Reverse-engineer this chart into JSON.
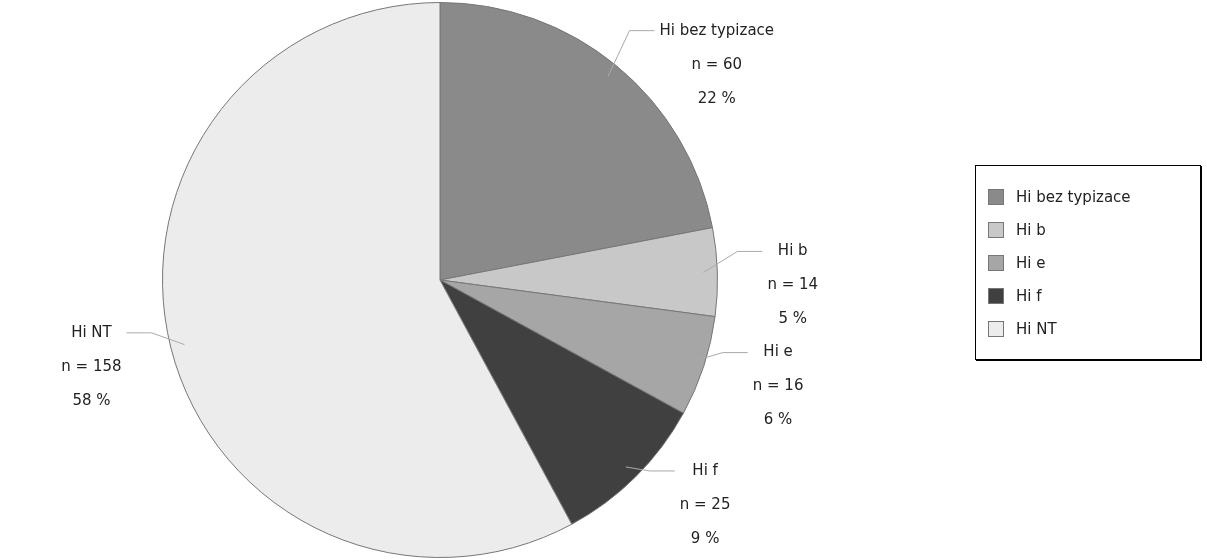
{
  "chart_data": {
    "type": "pie",
    "categories": [
      "Hi bez typizace",
      "Hi b",
      "Hi e",
      "Hi f",
      "Hi NT"
    ],
    "values": [
      60,
      14,
      16,
      25,
      158
    ],
    "value_labels": [
      "n = 60\n22 %",
      "n = 14\n5 %",
      "n = 16\n6 %",
      "n = 25\n9 %",
      "n = 158\n58 %"
    ],
    "colors": [
      "#8a8a8a",
      "#c8c8c8",
      "#a6a6a6",
      "#404040",
      "#ececec"
    ],
    "legend": "right"
  }
}
